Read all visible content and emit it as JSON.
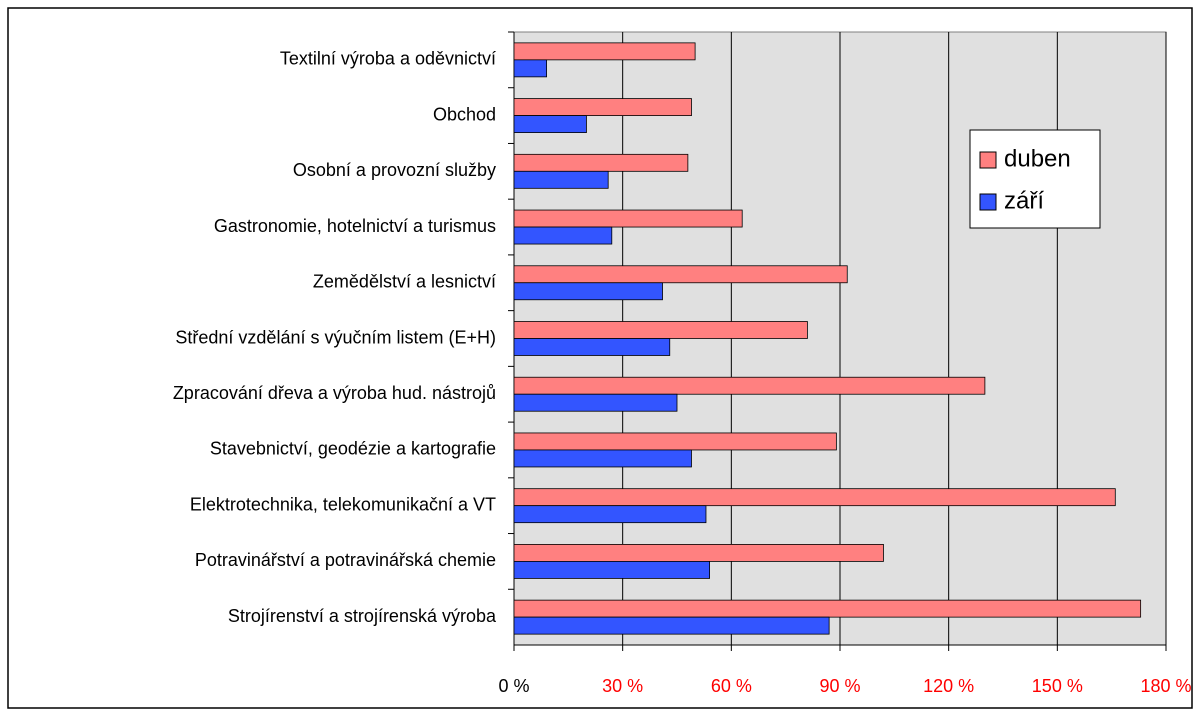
{
  "chart_data": {
    "type": "barh",
    "categories": [
      "Textilní výroba a oděvnictví",
      "Obchod",
      "Osobní a provozní služby",
      "Gastronomie, hotelnictví a turismus",
      "Zemědělství a lesnictví",
      "Střední vzdělání s výučním listem (E+H)",
      "Zpracování dřeva a výroba hud. nástrojů",
      "Stavebnictví, geodézie a kartografie",
      "Elektrotechnika, telekomunikační a VT",
      "Potravinářství a potravinářská chemie",
      "Strojírenství a strojírenská výroba"
    ],
    "series": [
      {
        "name": "duben",
        "color": "#ff8080",
        "values": [
          50,
          49,
          48,
          63,
          92,
          81,
          130,
          89,
          166,
          102,
          173
        ]
      },
      {
        "name": "září",
        "color": "#3355ff",
        "values": [
          9,
          20,
          26,
          27,
          41,
          43,
          45,
          49,
          53,
          54,
          87
        ]
      }
    ],
    "xlim": [
      0,
      180
    ],
    "xticks": [
      {
        "value": 0,
        "label": "0 %"
      },
      {
        "value": 30,
        "label": "30 %"
      },
      {
        "value": 60,
        "label": "60 %"
      },
      {
        "value": 90,
        "label": "90 %"
      },
      {
        "value": 120,
        "label": "120 %"
      },
      {
        "value": 150,
        "label": "150 %"
      },
      {
        "value": 180,
        "label": "180 %"
      }
    ],
    "xtick_label_colors": [
      "#000000",
      "#ff0000",
      "#ff0000",
      "#ff0000",
      "#ff0000",
      "#ff0000",
      "#ff0000"
    ],
    "grid": true,
    "legend": "right"
  }
}
